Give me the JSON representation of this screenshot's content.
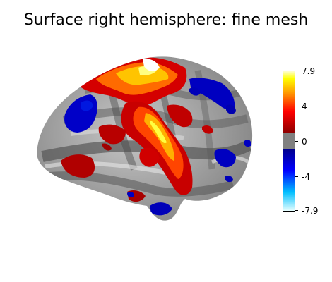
{
  "title": "Surface right hemisphere: fine mesh",
  "colorbar": {
    "max": 7.9,
    "min": -7.9,
    "tick_labels": [
      "7.9",
      "4",
      "0",
      "-4",
      "-7.9"
    ],
    "threshold_band_color": "#808080",
    "positive_colors": [
      "#8b0000",
      "#ff0000",
      "#ff8c00",
      "#ffff00",
      "#ffffff"
    ],
    "negative_colors": [
      "#00008b",
      "#0000ff",
      "#00bfff",
      "#e0ffff"
    ]
  }
}
